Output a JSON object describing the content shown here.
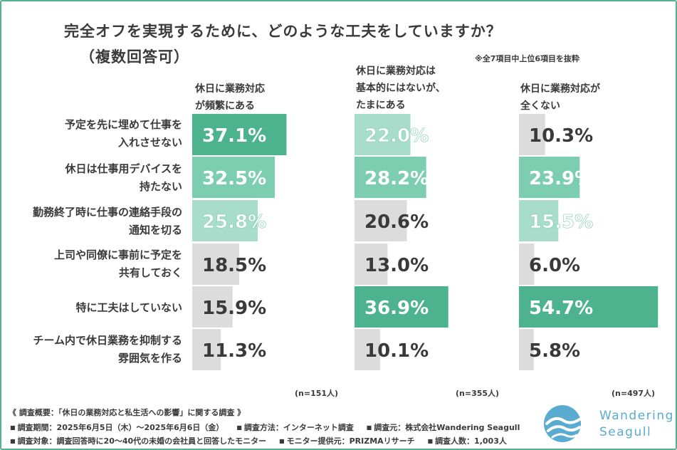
{
  "title_line1": "完全オフを実現するために、どのような工夫をしていますか？",
  "title_line2": "（複数回答可）",
  "note": "※全7項目中上位6項目を抜粋",
  "columns": [
    {
      "head": [
        "休日に業務対応",
        "が頻繁にある"
      ],
      "n": "(n=151人)"
    },
    {
      "head": [
        "休日に業務対応は",
        "基本的にはないが、",
        "たまにある"
      ],
      "n": "(n=355人)"
    },
    {
      "head": [
        "休日に業務対応が",
        "全くない"
      ],
      "n": "(n=497人)"
    }
  ],
  "rows": [
    [
      "予定を先に埋めて仕事を",
      "入れさせない"
    ],
    [
      "休日は仕事用デバイスを",
      "持たない"
    ],
    [
      "勤務終了時に仕事の連絡手段の",
      "通知を切る"
    ],
    [
      "上司や同僚に事前に予定を",
      "共有しておく"
    ],
    [
      "特に工夫はしていない"
    ],
    [
      "チーム内で休日業務を抑制する",
      "雰囲気を作る"
    ]
  ],
  "colors": {
    "rank1": "#4db38f",
    "rank2": "#7dcdb1",
    "rank3": "#a8ddcb",
    "other": "#dcdcdc",
    "text_dark": "#3a3a3a",
    "text_light": "#ffffff",
    "frame": "#53b391",
    "logo_blue": "#5aabd0"
  },
  "chart_data": {
    "type": "bar",
    "orientation": "horizontal",
    "title": "完全オフを実現するために、どのような工夫をしていますか？（複数回答可）",
    "unit": "%",
    "categories": [
      "予定を先に埋めて仕事を入れさせない",
      "休日は仕事用デバイスを持たない",
      "勤務終了時に仕事の連絡手段の通知を切る",
      "上司や同僚に事前に予定を共有しておく",
      "特に工夫はしていない",
      "チーム内で休日業務を抑制する雰囲気を作る"
    ],
    "series": [
      {
        "name": "休日に業務対応が頻繁にある",
        "values": [
          37.1,
          32.5,
          25.8,
          18.5,
          15.9,
          11.3
        ],
        "labels": [
          "37.1%",
          "32.5%",
          "25.8%",
          "18.5%",
          "15.9%",
          "11.3%"
        ],
        "n": 151
      },
      {
        "name": "休日に業務対応は基本的にはないが、たまにある",
        "values": [
          22.0,
          28.2,
          20.6,
          13.0,
          36.9,
          10.1
        ],
        "labels": [
          "22.0%",
          "28.2%",
          "20.6%",
          "13.0%",
          "36.9%",
          "10.1%"
        ],
        "n": 355
      },
      {
        "name": "休日に業務対応が全くない",
        "values": [
          10.3,
          23.9,
          15.5,
          6.0,
          54.7,
          5.8
        ],
        "labels": [
          "10.3%",
          "23.9%",
          "15.5%",
          "6.0%",
          "54.7%",
          "5.8%"
        ],
        "n": 497
      }
    ],
    "xlim": [
      0,
      55
    ]
  },
  "footer": {
    "line1": "《 調査概要：「休日の業務対応と私生活への影響」に関する調査 》",
    "line2": [
      "調査期間：2025年6月5日（木）～2025年6月6日（金）",
      "調査方法：インターネット調査",
      "調査元：株式会社Wandering Seagull"
    ],
    "line3": [
      "調査対象：調査回答時に20～40代の未婚の会社員と回答したモニター",
      "モニター提供元：PRIZMAリサーチ",
      "調査人数：1,003人"
    ]
  },
  "logo": {
    "line1": "Wandering",
    "line2": "Seagull"
  }
}
